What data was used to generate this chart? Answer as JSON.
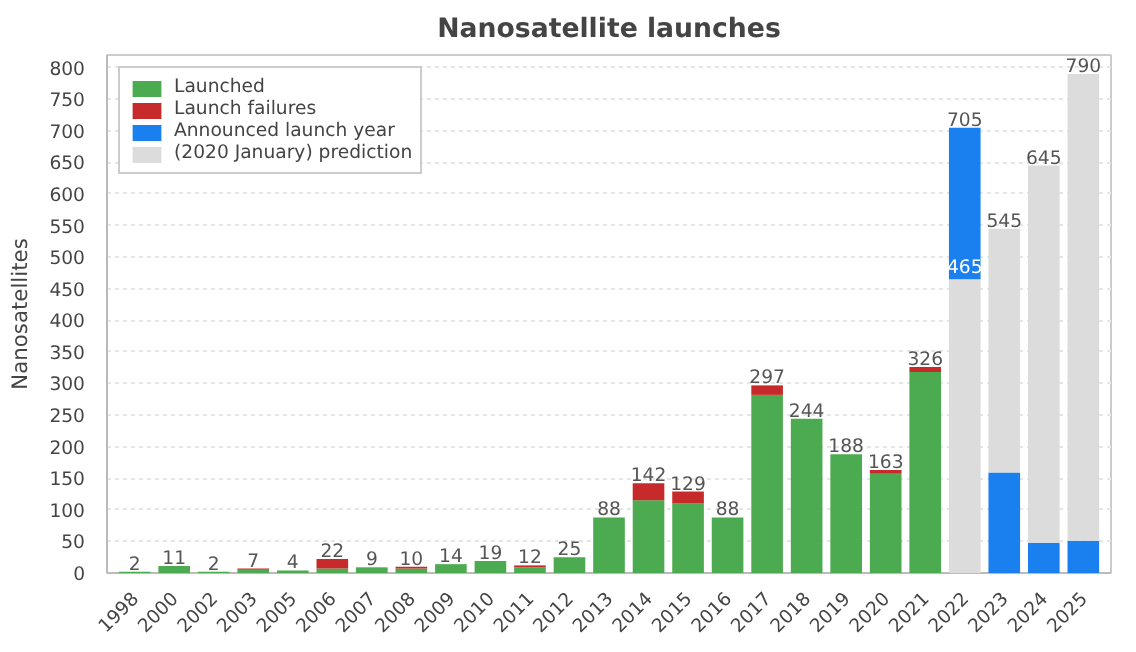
{
  "chart_data": {
    "type": "bar",
    "title": "Nanosatellite launches",
    "ylabel": "Nanosatellites",
    "stacked": true,
    "categories": [
      "1998",
      "2000",
      "2002",
      "2003",
      "2005",
      "2006",
      "2007",
      "2008",
      "2009",
      "2010",
      "2011",
      "2012",
      "2013",
      "2014",
      "2015",
      "2016",
      "2017",
      "2018",
      "2019",
      "2020",
      "2021",
      "2022",
      "2023",
      "2024",
      "2025"
    ],
    "series": [
      {
        "name": "Launched",
        "color": "#4caa50",
        "values": [
          2,
          11,
          2,
          5,
          4,
          7,
          9,
          7,
          14,
          19,
          9,
          25,
          88,
          115,
          110,
          88,
          282,
          244,
          188,
          157,
          318,
          null,
          null,
          null,
          null
        ]
      },
      {
        "name": "Launch failures",
        "color": "#c62a2a",
        "values": [
          null,
          null,
          null,
          2,
          null,
          15,
          null,
          3,
          null,
          null,
          3,
          null,
          null,
          27,
          19,
          null,
          15,
          null,
          null,
          6,
          8,
          null,
          null,
          null,
          null
        ]
      },
      {
        "color": "#dcdcdc",
        "values": [
          null,
          null,
          null,
          null,
          null,
          null,
          null,
          null,
          null,
          null,
          null,
          null,
          null,
          null,
          null,
          null,
          null,
          null,
          null,
          null,
          null,
          465,
          null,
          null,
          null
        ]
      },
      {
        "name": "Announced launch year",
        "color": "#1a80f0",
        "values": [
          null,
          null,
          null,
          null,
          null,
          null,
          null,
          null,
          null,
          null,
          null,
          null,
          null,
          null,
          null,
          null,
          null,
          null,
          null,
          null,
          null,
          240,
          159,
          48,
          51
        ]
      },
      {
        "name": "(2020 January) prediction",
        "color": "#dcdcdc",
        "values": [
          null,
          null,
          null,
          null,
          null,
          null,
          null,
          null,
          null,
          null,
          null,
          null,
          null,
          null,
          null,
          null,
          null,
          null,
          null,
          null,
          null,
          null,
          386,
          597,
          739
        ]
      }
    ],
    "totals": [
      "2",
      "11",
      "2",
      "7",
      "4",
      "22",
      "9",
      "10",
      "14",
      "19",
      "12",
      "25",
      "88",
      "142",
      "129",
      "88",
      "297",
      "244",
      "188",
      "163",
      "326",
      "705",
      "545",
      "645",
      "790"
    ],
    "annotations": [
      {
        "text": "465",
        "x": "2022",
        "y": 465
      }
    ],
    "ylim": [
      0,
      820
    ],
    "yticks": [
      0,
      50,
      100,
      150,
      200,
      250,
      300,
      350,
      400,
      450,
      500,
      550,
      600,
      650,
      700,
      750,
      800
    ],
    "grid": "y",
    "legend": "top left"
  }
}
